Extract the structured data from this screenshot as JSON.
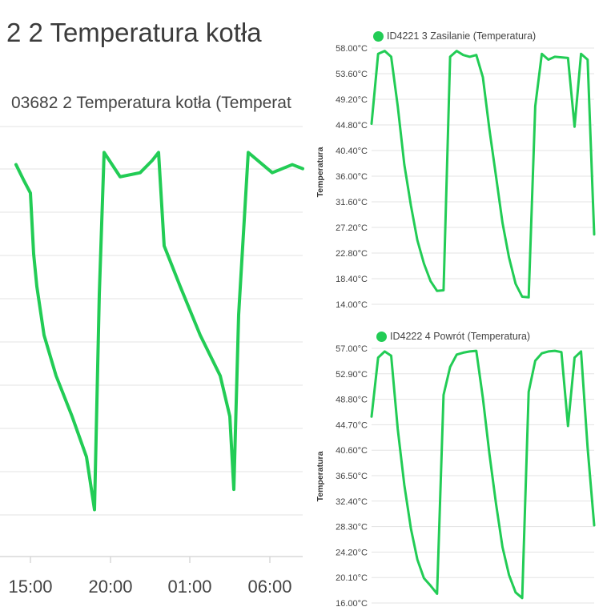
{
  "colors": {
    "line": "#22cc55",
    "grid": "#e3e3e3",
    "axis": "#d8d8d8"
  },
  "chart_data": [
    {
      "type": "line",
      "title": "2 2 Temperatura kotła",
      "series": [
        {
          "name": "03682 2 Temperatura kotła (Temperat"
        }
      ],
      "x_ticks": [
        "15:00",
        "20:00",
        "01:00",
        "06:00"
      ],
      "x": [
        "13:00",
        "13:30",
        "14:00",
        "14:30",
        "15:00",
        "16:00",
        "17:00",
        "18:00",
        "18:30",
        "19:00",
        "19:30",
        "20:00",
        "21:00",
        "22:00",
        "22:30",
        "23:00",
        "24:00",
        "01:00",
        "02:00",
        "02:45",
        "03:15",
        "03:45",
        "04:15",
        "05:00",
        "06:00",
        "07:00",
        "07:30"
      ],
      "values_relative": [
        0.92,
        0.88,
        0.85,
        0.7,
        0.62,
        0.5,
        0.4,
        0.3,
        0.2,
        0.07,
        0.6,
        0.95,
        0.89,
        0.9,
        0.93,
        0.95,
        0.72,
        0.62,
        0.5,
        0.4,
        0.3,
        0.12,
        0.55,
        0.95,
        0.9,
        0.92,
        0.91
      ],
      "grid": true
    },
    {
      "type": "line",
      "series": [
        {
          "name": "ID4221 3 Zasilanie (Temperatura)"
        }
      ],
      "ylabel": "Temperatura",
      "y_ticks": [
        "58.00°C",
        "53.60°C",
        "49.20°C",
        "44.80°C",
        "40.40°C",
        "36.00°C",
        "31.60°C",
        "27.20°C",
        "22.80°C",
        "18.40°C",
        "14.00°C"
      ],
      "ylim": [
        14.0,
        58.0
      ],
      "x": [
        0,
        1,
        2,
        3,
        4,
        5,
        6,
        7,
        8,
        9,
        10,
        11,
        12,
        13,
        14,
        15,
        16,
        17,
        18,
        19,
        20,
        21,
        22,
        23,
        24,
        25,
        26,
        27,
        28,
        29,
        30,
        31,
        32,
        33,
        34
      ],
      "values": [
        45,
        57,
        57.5,
        56.5,
        48,
        38,
        31,
        25,
        21,
        18,
        16.3,
        16.4,
        56.5,
        57.5,
        56.8,
        56.5,
        56.8,
        53,
        44,
        36,
        28,
        22,
        17.5,
        15.3,
        15.2,
        48,
        57,
        56,
        56.5,
        56.4,
        56.3,
        44.5,
        57,
        56,
        26
      ],
      "grid": true
    },
    {
      "type": "line",
      "series": [
        {
          "name": "ID4222 4 Powrót (Temperatura)"
        }
      ],
      "ylabel": "Temperatura",
      "y_ticks": [
        "57.00°C",
        "52.90°C",
        "48.80°C",
        "44.70°C",
        "40.60°C",
        "36.50°C",
        "32.40°C",
        "28.30°C",
        "24.20°C",
        "20.10°C",
        "16.00°C"
      ],
      "ylim": [
        16.0,
        57.0
      ],
      "x": [
        0,
        1,
        2,
        3,
        4,
        5,
        6,
        7,
        8,
        9,
        10,
        11,
        12,
        13,
        14,
        15,
        16,
        17,
        18,
        19,
        20,
        21,
        22,
        23,
        24,
        25,
        26,
        27,
        28,
        29,
        30,
        31,
        32,
        33,
        34
      ],
      "values": [
        46,
        55.5,
        56.5,
        55.8,
        44,
        35,
        28,
        23,
        20,
        18.8,
        17.5,
        49.5,
        54,
        56,
        56.3,
        56.5,
        56.6,
        49,
        40,
        32,
        25,
        20.5,
        17.7,
        16.8,
        50,
        55,
        56.2,
        56.5,
        56.6,
        56.4,
        44.5,
        55.5,
        56.5,
        41,
        28.5
      ],
      "grid": true
    }
  ]
}
